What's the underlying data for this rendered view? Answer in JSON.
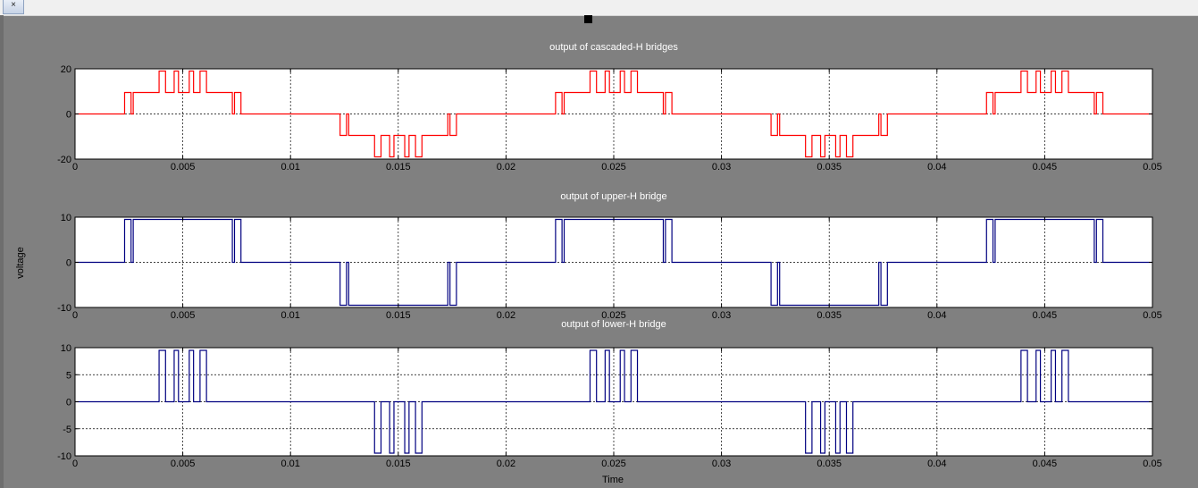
{
  "window": {
    "close_label": "×",
    "shared_ylabel": "voltage",
    "shared_xlabel": "Time"
  },
  "chart_data": [
    {
      "type": "line",
      "title": "output of cascaded-H bridges",
      "xlabel": "",
      "ylabel": "",
      "xlim": [
        0,
        0.05
      ],
      "ylim": [
        -20,
        20
      ],
      "xticks": [
        "0",
        "0.005",
        "0.01",
        "0.015",
        "0.02",
        "0.025",
        "0.03",
        "0.035",
        "0.04",
        "0.045",
        "0.05"
      ],
      "yticks": [
        "20",
        "0",
        "-20"
      ],
      "grid": true,
      "color": "#ff0000",
      "series": [
        {
          "x": [
            0,
            0.0023,
            0.0023,
            0.0026,
            0.0026,
            0.0027,
            0.0027,
            0.0039,
            0.0039,
            0.0042,
            0.0042,
            0.0046,
            0.0046,
            0.0048,
            0.0048,
            0.0053,
            0.0053,
            0.0055,
            0.0055,
            0.0058,
            0.0058,
            0.0061,
            0.0061,
            0.0073,
            0.0073,
            0.0074,
            0.0074,
            0.0077,
            0.0077,
            0.0123,
            0.0123,
            0.0126,
            0.0126,
            0.0127,
            0.0127,
            0.0139,
            0.0139,
            0.0142,
            0.0142,
            0.0146,
            0.0146,
            0.0148,
            0.0148,
            0.0153,
            0.0153,
            0.0155,
            0.0155,
            0.0158,
            0.0158,
            0.0161,
            0.0161,
            0.0173,
            0.0173,
            0.0174,
            0.0174,
            0.0177,
            0.0177,
            0.0223,
            0.0223,
            0.0226,
            0.0226,
            0.0227,
            0.0227,
            0.0239,
            0.0239,
            0.0242,
            0.0242,
            0.0246,
            0.0246,
            0.0248,
            0.0248,
            0.0253,
            0.0253,
            0.0255,
            0.0255,
            0.0258,
            0.0258,
            0.0261,
            0.0261,
            0.0273,
            0.0273,
            0.0274,
            0.0274,
            0.0277,
            0.0277,
            0.0323,
            0.0323,
            0.0326,
            0.0326,
            0.0327,
            0.0327,
            0.0339,
            0.0339,
            0.0342,
            0.0342,
            0.0346,
            0.0346,
            0.0348,
            0.0348,
            0.0353,
            0.0353,
            0.0355,
            0.0355,
            0.0358,
            0.0358,
            0.0361,
            0.0361,
            0.0373,
            0.0373,
            0.0374,
            0.0374,
            0.0377,
            0.0377,
            0.0423,
            0.0423,
            0.0426,
            0.0426,
            0.0427,
            0.0427,
            0.0439,
            0.0439,
            0.0442,
            0.0442,
            0.0446,
            0.0446,
            0.0448,
            0.0448,
            0.0453,
            0.0453,
            0.0455,
            0.0455,
            0.0458,
            0.0458,
            0.0461,
            0.0461,
            0.0473,
            0.0473,
            0.0474,
            0.0474,
            0.0477,
            0.0477,
            0.05
          ],
          "y": [
            0,
            0,
            9.5,
            9.5,
            0,
            0,
            9.5,
            9.5,
            19,
            19,
            9.5,
            9.5,
            19,
            19,
            9.5,
            9.5,
            19,
            19,
            9.5,
            9.5,
            19,
            19,
            9.5,
            9.5,
            0,
            0,
            9.5,
            9.5,
            0,
            0,
            -9.5,
            -9.5,
            0,
            0,
            -9.5,
            -9.5,
            -19,
            -19,
            -9.5,
            -9.5,
            -19,
            -19,
            -9.5,
            -9.5,
            -19,
            -19,
            -9.5,
            -9.5,
            -19,
            -19,
            -9.5,
            -9.5,
            0,
            0,
            -9.5,
            -9.5,
            0,
            0,
            9.5,
            9.5,
            0,
            0,
            9.5,
            9.5,
            19,
            19,
            9.5,
            9.5,
            19,
            19,
            9.5,
            9.5,
            19,
            19,
            9.5,
            9.5,
            19,
            19,
            9.5,
            9.5,
            0,
            0,
            9.5,
            9.5,
            0,
            0,
            -9.5,
            -9.5,
            0,
            0,
            -9.5,
            -9.5,
            -19,
            -19,
            -9.5,
            -9.5,
            -19,
            -19,
            -9.5,
            -9.5,
            -19,
            -19,
            -9.5,
            -9.5,
            -19,
            -19,
            -9.5,
            -9.5,
            0,
            0,
            -9.5,
            -9.5,
            0,
            0,
            9.5,
            9.5,
            0,
            0,
            9.5,
            9.5,
            19,
            19,
            9.5,
            9.5,
            19,
            19,
            9.5,
            9.5,
            19,
            19,
            9.5,
            9.5,
            19,
            19,
            9.5,
            9.5,
            0,
            0,
            9.5,
            9.5,
            0,
            0
          ]
        }
      ]
    },
    {
      "type": "line",
      "title": "output of upper-H bridge",
      "xlabel": "",
      "ylabel": "",
      "xlim": [
        0,
        0.05
      ],
      "ylim": [
        -10,
        10
      ],
      "xticks": [
        "0",
        "0.005",
        "0.01",
        "0.015",
        "0.02",
        "0.025",
        "0.03",
        "0.035",
        "0.04",
        "0.045",
        "0.05"
      ],
      "yticks": [
        "10",
        "0",
        "-10"
      ],
      "grid": true,
      "color": "#000080",
      "series": [
        {
          "x": [
            0,
            0.0023,
            0.0023,
            0.0026,
            0.0026,
            0.0027,
            0.0027,
            0.0073,
            0.0073,
            0.0074,
            0.0074,
            0.0077,
            0.0077,
            0.0123,
            0.0123,
            0.0126,
            0.0126,
            0.0127,
            0.0127,
            0.0173,
            0.0173,
            0.0174,
            0.0174,
            0.0177,
            0.0177,
            0.0223,
            0.0223,
            0.0226,
            0.0226,
            0.0227,
            0.0227,
            0.0273,
            0.0273,
            0.0274,
            0.0274,
            0.0277,
            0.0277,
            0.0323,
            0.0323,
            0.0326,
            0.0326,
            0.0327,
            0.0327,
            0.0373,
            0.0373,
            0.0374,
            0.0374,
            0.0377,
            0.0377,
            0.0423,
            0.0423,
            0.0426,
            0.0426,
            0.0427,
            0.0427,
            0.0473,
            0.0473,
            0.0474,
            0.0474,
            0.0477,
            0.0477,
            0.05
          ],
          "y": [
            0,
            0,
            9.5,
            9.5,
            0,
            0,
            9.5,
            9.5,
            0,
            0,
            9.5,
            9.5,
            0,
            0,
            -9.5,
            -9.5,
            0,
            0,
            -9.5,
            -9.5,
            0,
            0,
            -9.5,
            -9.5,
            0,
            0,
            9.5,
            9.5,
            0,
            0,
            9.5,
            9.5,
            0,
            0,
            9.5,
            9.5,
            0,
            0,
            -9.5,
            -9.5,
            0,
            0,
            -9.5,
            -9.5,
            0,
            0,
            -9.5,
            -9.5,
            0,
            0,
            9.5,
            9.5,
            0,
            0,
            9.5,
            9.5,
            0,
            0,
            9.5,
            9.5,
            0,
            0
          ]
        }
      ]
    },
    {
      "type": "line",
      "title": "output of lower-H bridge",
      "xlabel": "",
      "ylabel": "",
      "xlim": [
        0,
        0.05
      ],
      "ylim": [
        -10,
        10
      ],
      "xticks": [
        "0",
        "0.005",
        "0.01",
        "0.015",
        "0.02",
        "0.025",
        "0.03",
        "0.035",
        "0.04",
        "0.045",
        "0.05"
      ],
      "yticks": [
        "10",
        "5",
        "0",
        "-5",
        "-10"
      ],
      "grid": true,
      "color": "#000080",
      "series": [
        {
          "x": [
            0,
            0.0039,
            0.0039,
            0.0042,
            0.0042,
            0.0046,
            0.0046,
            0.0048,
            0.0048,
            0.0053,
            0.0053,
            0.0055,
            0.0055,
            0.0058,
            0.0058,
            0.0061,
            0.0061,
            0.0139,
            0.0139,
            0.0142,
            0.0142,
            0.0146,
            0.0146,
            0.0148,
            0.0148,
            0.0153,
            0.0153,
            0.0155,
            0.0155,
            0.0158,
            0.0158,
            0.0161,
            0.0161,
            0.0239,
            0.0239,
            0.0242,
            0.0242,
            0.0246,
            0.0246,
            0.0248,
            0.0248,
            0.0253,
            0.0253,
            0.0255,
            0.0255,
            0.0258,
            0.0258,
            0.0261,
            0.0261,
            0.0339,
            0.0339,
            0.0342,
            0.0342,
            0.0346,
            0.0346,
            0.0348,
            0.0348,
            0.0353,
            0.0353,
            0.0355,
            0.0355,
            0.0358,
            0.0358,
            0.0361,
            0.0361,
            0.0439,
            0.0439,
            0.0442,
            0.0442,
            0.0446,
            0.0446,
            0.0448,
            0.0448,
            0.0453,
            0.0453,
            0.0455,
            0.0455,
            0.0458,
            0.0458,
            0.0461,
            0.0461,
            0.05
          ],
          "y": [
            0,
            0,
            9.5,
            9.5,
            0,
            0,
            9.5,
            9.5,
            0,
            0,
            9.5,
            9.5,
            0,
            0,
            9.5,
            9.5,
            0,
            0,
            -9.5,
            -9.5,
            0,
            0,
            -9.5,
            -9.5,
            0,
            0,
            -9.5,
            -9.5,
            0,
            0,
            -9.5,
            -9.5,
            0,
            0,
            9.5,
            9.5,
            0,
            0,
            9.5,
            9.5,
            0,
            0,
            9.5,
            9.5,
            0,
            0,
            9.5,
            9.5,
            0,
            0,
            -9.5,
            -9.5,
            0,
            0,
            -9.5,
            -9.5,
            0,
            0,
            -9.5,
            -9.5,
            0,
            0,
            -9.5,
            -9.5,
            0,
            0,
            9.5,
            9.5,
            0,
            0,
            9.5,
            9.5,
            0,
            0,
            9.5,
            9.5,
            0,
            0,
            9.5,
            9.5,
            0,
            0
          ]
        }
      ]
    }
  ]
}
